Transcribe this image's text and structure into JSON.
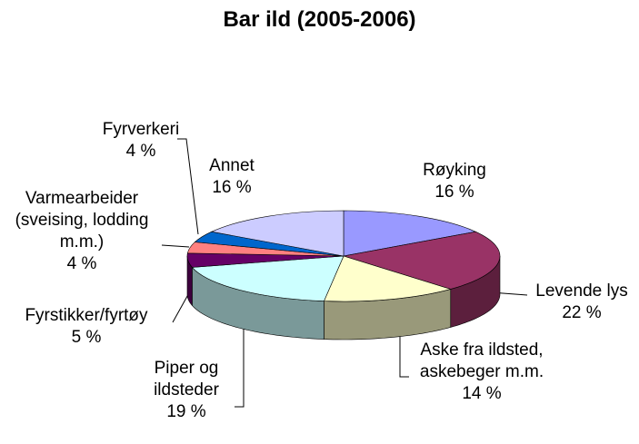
{
  "chart_data": {
    "type": "pie3d",
    "title": "Bar ild (2005-2006)",
    "categories": [
      "Røyking",
      "Levende lys",
      "Aske fra ildsted, askebeger m.m.",
      "Piper og ildsteder",
      "Fyrstikker/fyrtøy",
      "Varmearbeider (sveising, lodding m.m.)",
      "Fyrverkeri",
      "Annet"
    ],
    "values": [
      16,
      22,
      14,
      19,
      5,
      4,
      4,
      16
    ],
    "value_labels": [
      "16 %",
      "22 %",
      "14 %",
      "19 %",
      "5 %",
      "4 %",
      "4 %",
      "16 %"
    ],
    "colors": [
      "#9999ff",
      "#993366",
      "#ffffcc",
      "#ccffff",
      "#660066",
      "#ff8080",
      "#0066cc",
      "#ccccff"
    ]
  }
}
